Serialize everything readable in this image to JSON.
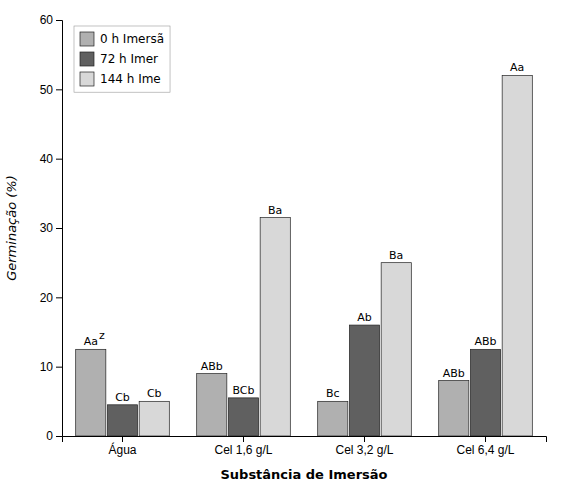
{
  "chart_data": {
    "type": "bar",
    "xlabel": "Substância de Imersão",
    "ylabel": "Germinação (%)",
    "categories": [
      "Água",
      "Cel 1,6 g/L",
      "Cel 3,2 g/L",
      "Cel 6,4 g/L"
    ],
    "series": [
      {
        "name": "0 h Imersã",
        "color": "#b0b0b0",
        "values": [
          12.5,
          9.0,
          5.0,
          8.0
        ]
      },
      {
        "name": "72 h  Imer",
        "color": "#606060",
        "values": [
          4.5,
          5.5,
          16.0,
          12.5
        ]
      },
      {
        "name": "144 h Ime",
        "color": "#d8d8d8",
        "values": [
          5.0,
          31.5,
          25.0,
          52.0
        ]
      }
    ],
    "annotations": [
      {
        "text": "Aa",
        "category": "Água",
        "series": "0 h Imersã"
      },
      {
        "text": "z",
        "category": "Água",
        "series": "0 h Imersã"
      },
      {
        "text": "Cb",
        "category": "Água",
        "series": "72 h  Imer"
      },
      {
        "text": "Cb",
        "category": "Água",
        "series": "144 h Ime"
      },
      {
        "text": "ABb",
        "category": "Cel 1,6 g/L",
        "series": "0 h Imersã"
      },
      {
        "text": "BCb",
        "category": "Cel 1,6 g/L",
        "series": "72 h  Imer"
      },
      {
        "text": "Ba",
        "category": "Cel 1,6 g/L",
        "series": "144 h Ime"
      },
      {
        "text": "Bc",
        "category": "Cel 3,2 g/L",
        "series": "0 h Imersã"
      },
      {
        "text": "Ab",
        "category": "Cel 3,2 g/L",
        "series": "72 h  Imer"
      },
      {
        "text": "Ba",
        "category": "Cel 3,2 g/L",
        "series": "144 h Ime"
      },
      {
        "text": "ABb",
        "category": "Cel 6,4 g/L",
        "series": "0 h Imersã"
      },
      {
        "text": "ABb",
        "category": "Cel 6,4 g/L",
        "series": "72 h  Imer"
      },
      {
        "text": "Aa",
        "category": "Cel 6,4 g/L",
        "series": "144 h Ime"
      }
    ],
    "ylim": [
      0,
      60
    ],
    "yticks": [
      0,
      10,
      20,
      30,
      40,
      50,
      60
    ],
    "grid": false,
    "legend": "upper left"
  }
}
